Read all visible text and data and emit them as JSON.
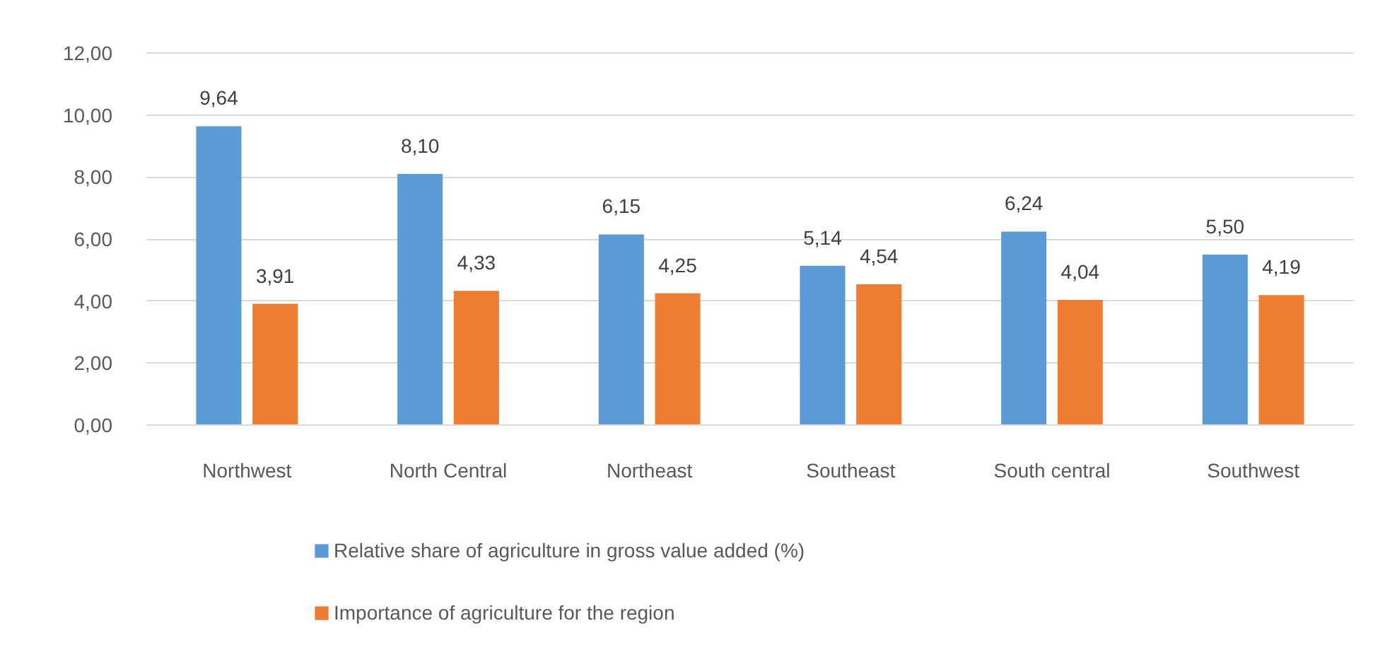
{
  "chart_data": {
    "type": "bar",
    "categories": [
      "Northwest",
      "North Central",
      "Northeast",
      "Southeast",
      "South central",
      "Southwest"
    ],
    "series": [
      {
        "name": "Relative share of agriculture in gross value added (%)",
        "color": "#5b9bd5",
        "values": [
          9.64,
          8.1,
          6.15,
          5.14,
          6.24,
          5.5
        ],
        "value_labels": [
          "9,64",
          "8,10",
          "6,15",
          "5,14",
          "6,24",
          "5,50"
        ]
      },
      {
        "name": "Importance of agriculture for the region",
        "color": "#ed7d31",
        "values": [
          3.91,
          4.33,
          4.25,
          4.54,
          4.04,
          4.19
        ],
        "value_labels": [
          "3,91",
          "4,33",
          "4,25",
          "4,54",
          "4,04",
          "4,19"
        ]
      }
    ],
    "ylim": [
      0,
      12
    ],
    "yticks": [
      {
        "value": 0,
        "label": "0,00"
      },
      {
        "value": 2,
        "label": "2,00"
      },
      {
        "value": 4,
        "label": "4,00"
      },
      {
        "value": 6,
        "label": "6,00"
      },
      {
        "value": 8,
        "label": "8,00"
      },
      {
        "value": 10,
        "label": "10,00"
      },
      {
        "value": 12,
        "label": "12,00"
      }
    ],
    "grid": "y",
    "legend": "bottom"
  }
}
